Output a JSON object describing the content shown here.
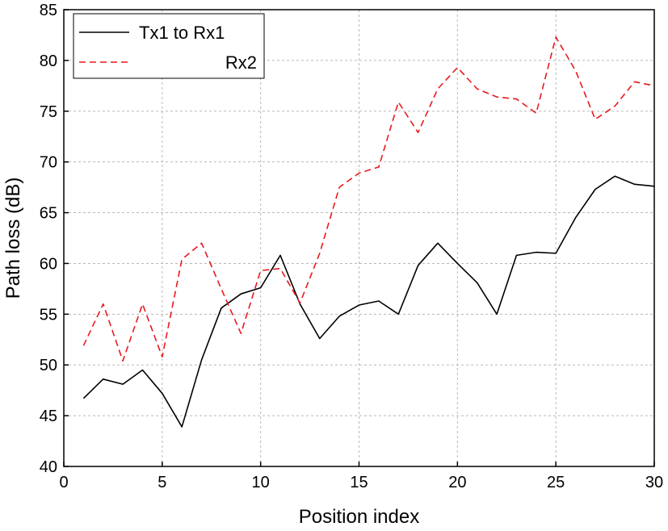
{
  "chart_data": {
    "type": "line",
    "xlabel": "Position index",
    "ylabel": "Path loss (dB)",
    "xlim": [
      0,
      30
    ],
    "ylim": [
      40,
      85
    ],
    "xticks": [
      0,
      5,
      10,
      15,
      20,
      25,
      30
    ],
    "yticks": [
      40,
      45,
      50,
      55,
      60,
      65,
      70,
      75,
      80,
      85
    ],
    "grid": true,
    "legend_position": "top-left",
    "x": [
      1,
      2,
      3,
      4,
      5,
      6,
      7,
      8,
      9,
      10,
      11,
      12,
      13,
      14,
      15,
      16,
      17,
      18,
      19,
      20,
      21,
      22,
      23,
      24,
      25,
      26,
      27,
      28,
      29,
      30
    ],
    "series": [
      {
        "name": "Tx1 to Rx1",
        "color": "#000000",
        "style": "solid",
        "values": [
          46.7,
          48.6,
          48.1,
          49.5,
          47.2,
          43.9,
          50.5,
          55.6,
          57.0,
          57.6,
          60.8,
          56.0,
          52.6,
          54.8,
          55.9,
          56.3,
          55.0,
          59.8,
          62.0,
          60.0,
          58.1,
          55.0,
          60.8,
          61.1,
          61.0,
          64.5,
          67.3,
          68.6,
          67.8,
          67.6
        ]
      },
      {
        "name": "Rx2",
        "color": "#e8191e",
        "style": "dashed",
        "values": [
          51.9,
          56.0,
          50.4,
          56.0,
          50.8,
          60.4,
          62.0,
          57.5,
          53.1,
          59.3,
          59.5,
          56.1,
          61.0,
          67.5,
          68.9,
          69.5,
          75.9,
          72.9,
          77.2,
          79.3,
          77.2,
          76.4,
          76.2,
          74.8,
          82.3,
          79.0,
          74.2,
          75.5,
          77.9,
          77.5
        ]
      }
    ]
  }
}
